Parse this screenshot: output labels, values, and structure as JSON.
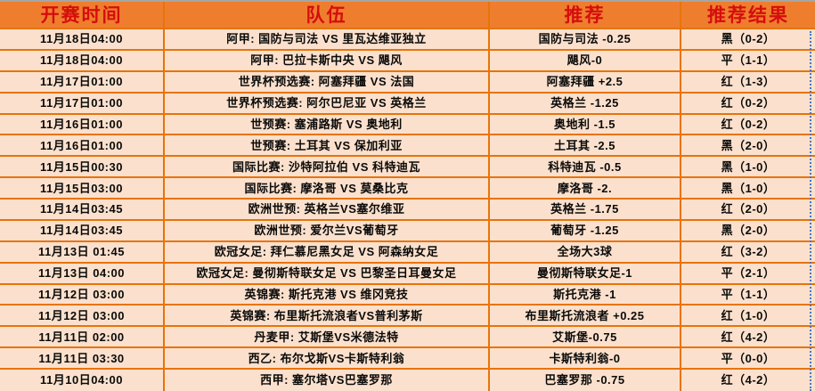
{
  "colors": {
    "header_bg": "#ee7e2e",
    "header_text": "#d60d0d",
    "row_bg": "#fbe1cd",
    "grid_border": "#e8730a",
    "top_edge_gray": "#a6a6a6",
    "page_break_blue": "#4a73c9",
    "cell_text": "#0a0a0a"
  },
  "table": {
    "columns": [
      {
        "label": "开赛时间"
      },
      {
        "label": "队伍"
      },
      {
        "label": "推荐"
      },
      {
        "label": "推荐结果"
      }
    ],
    "rows": [
      {
        "time": "11月18日04:00",
        "teams": "阿甲: 国防与司法 VS 里瓦达维亚独立",
        "tip": "国防与司法 -0.25",
        "result": "黑（0-2）"
      },
      {
        "time": "11月18日04:00",
        "teams": "阿甲: 巴拉卡斯中央 VS 飓风",
        "tip": "飓风-0",
        "result": "平（1-1）"
      },
      {
        "time": "11月17日01:00",
        "teams": "世界杯预选赛: 阿塞拜疆 VS 法国",
        "tip": "阿塞拜疆 +2.5",
        "result": "红（1-3）"
      },
      {
        "time": "11月17日01:00",
        "teams": "世界杯预选赛: 阿尔巴尼亚 VS 英格兰",
        "tip": "英格兰 -1.25",
        "result": "红（0-2）"
      },
      {
        "time": "11月16日01:00",
        "teams": "世预赛: 塞浦路斯 VS 奥地利",
        "tip": "奥地利 -1.5",
        "result": "红（0-2）"
      },
      {
        "time": "11月16日01:00",
        "teams": "世预赛: 土耳其 VS 保加利亚",
        "tip": "土耳其 -2.5",
        "result": "黑（2-0）"
      },
      {
        "time": "11月15日00:30",
        "teams": "国际比赛: 沙特阿拉伯 VS 科特迪瓦",
        "tip": "科特迪瓦 -0.5",
        "result": "黑（1-0）"
      },
      {
        "time": "11月15日03:00",
        "teams": "国际比赛: 摩洛哥 VS 莫桑比克",
        "tip": "摩洛哥 -2.",
        "result": "黑（1-0）"
      },
      {
        "time": "11月14日03:45",
        "teams": "欧洲世预: 英格兰VS塞尔维亚",
        "tip": "英格兰 -1.75",
        "result": "红（2-0）"
      },
      {
        "time": "11月14日03:45",
        "teams": "欧洲世预: 爱尔兰VS葡萄牙",
        "tip": "葡萄牙 -1.25",
        "result": "黑（2-0）"
      },
      {
        "time": "11月13日 01:45",
        "teams": "欧冠女足: 拜仁慕尼黑女足 VS 阿森纳女足",
        "tip": "全场大3球",
        "result": "红（3-2）"
      },
      {
        "time": "11月13日 04:00",
        "teams": "欧冠女足: 曼彻斯特联女足 VS 巴黎圣日耳曼女足",
        "tip": "曼彻斯特联女足-1",
        "result": "平（2-1）"
      },
      {
        "time": "11月12日 03:00",
        "teams": "英锦赛: 斯托克港 VS 维冈竞技",
        "tip": "斯托克港 -1",
        "result": "平（1-1）"
      },
      {
        "time": "11月12日 03:00",
        "teams": "英锦赛: 布里斯托流浪者VS普利茅斯",
        "tip": "布里斯托流浪者 +0.25",
        "result": "红（1-0）"
      },
      {
        "time": "11月11日 02:00",
        "teams": "丹麦甲: 艾斯堡VS米德法特",
        "tip": "艾斯堡-0.75",
        "result": "红（4-2）"
      },
      {
        "time": "11月11日 03:30",
        "teams": "西乙: 布尔戈斯VS卡斯特利翁",
        "tip": "卡斯特利翁-0",
        "result": "平（0-0）"
      },
      {
        "time": "11月10日04:00",
        "teams": "西甲: 塞尔塔VS巴塞罗那",
        "tip": "巴塞罗那 -0.75",
        "result": "红（4-2）"
      }
    ]
  }
}
